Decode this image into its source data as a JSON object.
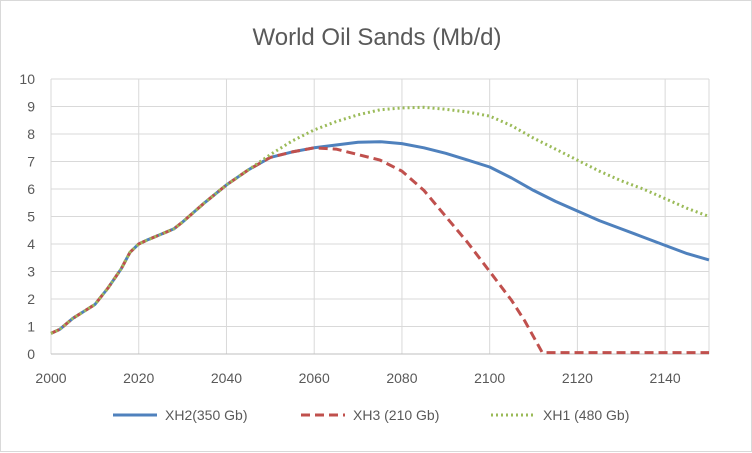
{
  "chart_data": {
    "type": "line",
    "title": "World Oil Sands (Mb/d)",
    "xlabel": "",
    "ylabel": "",
    "xlim": [
      2000,
      2150
    ],
    "ylim": [
      0,
      10
    ],
    "x_ticks": [
      2000,
      2020,
      2040,
      2060,
      2080,
      2100,
      2120,
      2140
    ],
    "y_ticks": [
      0,
      1,
      2,
      3,
      4,
      5,
      6,
      7,
      8,
      9,
      10
    ],
    "grid": true,
    "legend_position": "bottom",
    "series": [
      {
        "name": "XH2(350 Gb)",
        "color": "#4f81bd",
        "style": "solid",
        "x": [
          2000,
          2002,
          2005,
          2008,
          2010,
          2013,
          2016,
          2018,
          2020,
          2022,
          2025,
          2028,
          2030,
          2035,
          2040,
          2045,
          2050,
          2055,
          2060,
          2065,
          2070,
          2075,
          2080,
          2085,
          2090,
          2095,
          2100,
          2105,
          2110,
          2115,
          2120,
          2125,
          2130,
          2135,
          2140,
          2145,
          2150
        ],
        "y": [
          0.75,
          0.9,
          1.3,
          1.6,
          1.8,
          2.4,
          3.1,
          3.7,
          4.0,
          4.15,
          4.35,
          4.55,
          4.8,
          5.5,
          6.15,
          6.7,
          7.15,
          7.35,
          7.5,
          7.6,
          7.7,
          7.72,
          7.65,
          7.5,
          7.3,
          7.05,
          6.8,
          6.4,
          5.95,
          5.55,
          5.2,
          4.85,
          4.55,
          4.25,
          3.95,
          3.65,
          3.42
        ]
      },
      {
        "name": "XH3 (210 Gb)",
        "color": "#c0504d",
        "style": "dashed",
        "x": [
          2000,
          2002,
          2005,
          2008,
          2010,
          2013,
          2016,
          2018,
          2020,
          2022,
          2025,
          2028,
          2030,
          2035,
          2040,
          2045,
          2050,
          2055,
          2060,
          2065,
          2070,
          2075,
          2080,
          2085,
          2090,
          2095,
          2100,
          2105,
          2108,
          2112,
          2115,
          2120,
          2130,
          2140,
          2150
        ],
        "y": [
          0.75,
          0.9,
          1.3,
          1.6,
          1.8,
          2.4,
          3.1,
          3.7,
          4.0,
          4.15,
          4.35,
          4.55,
          4.8,
          5.5,
          6.15,
          6.7,
          7.15,
          7.35,
          7.5,
          7.45,
          7.25,
          7.05,
          6.65,
          5.95,
          5.0,
          4.05,
          3.0,
          1.95,
          1.2,
          0.05,
          0.05,
          0.05,
          0.05,
          0.05,
          0.05
        ]
      },
      {
        "name": "XH1 (480 Gb)",
        "color": "#9bbb59",
        "style": "dotted",
        "x": [
          2000,
          2002,
          2005,
          2008,
          2010,
          2013,
          2016,
          2018,
          2020,
          2022,
          2025,
          2028,
          2030,
          2035,
          2040,
          2045,
          2050,
          2055,
          2060,
          2065,
          2070,
          2075,
          2080,
          2085,
          2090,
          2095,
          2100,
          2105,
          2110,
          2115,
          2120,
          2125,
          2130,
          2135,
          2140,
          2145,
          2150
        ],
        "y": [
          0.75,
          0.9,
          1.3,
          1.6,
          1.8,
          2.4,
          3.1,
          3.7,
          4.0,
          4.15,
          4.35,
          4.55,
          4.8,
          5.5,
          6.15,
          6.7,
          7.25,
          7.75,
          8.15,
          8.45,
          8.7,
          8.88,
          8.95,
          8.97,
          8.9,
          8.8,
          8.65,
          8.3,
          7.85,
          7.45,
          7.05,
          6.65,
          6.3,
          6.0,
          5.65,
          5.3,
          5.0
        ]
      }
    ]
  }
}
